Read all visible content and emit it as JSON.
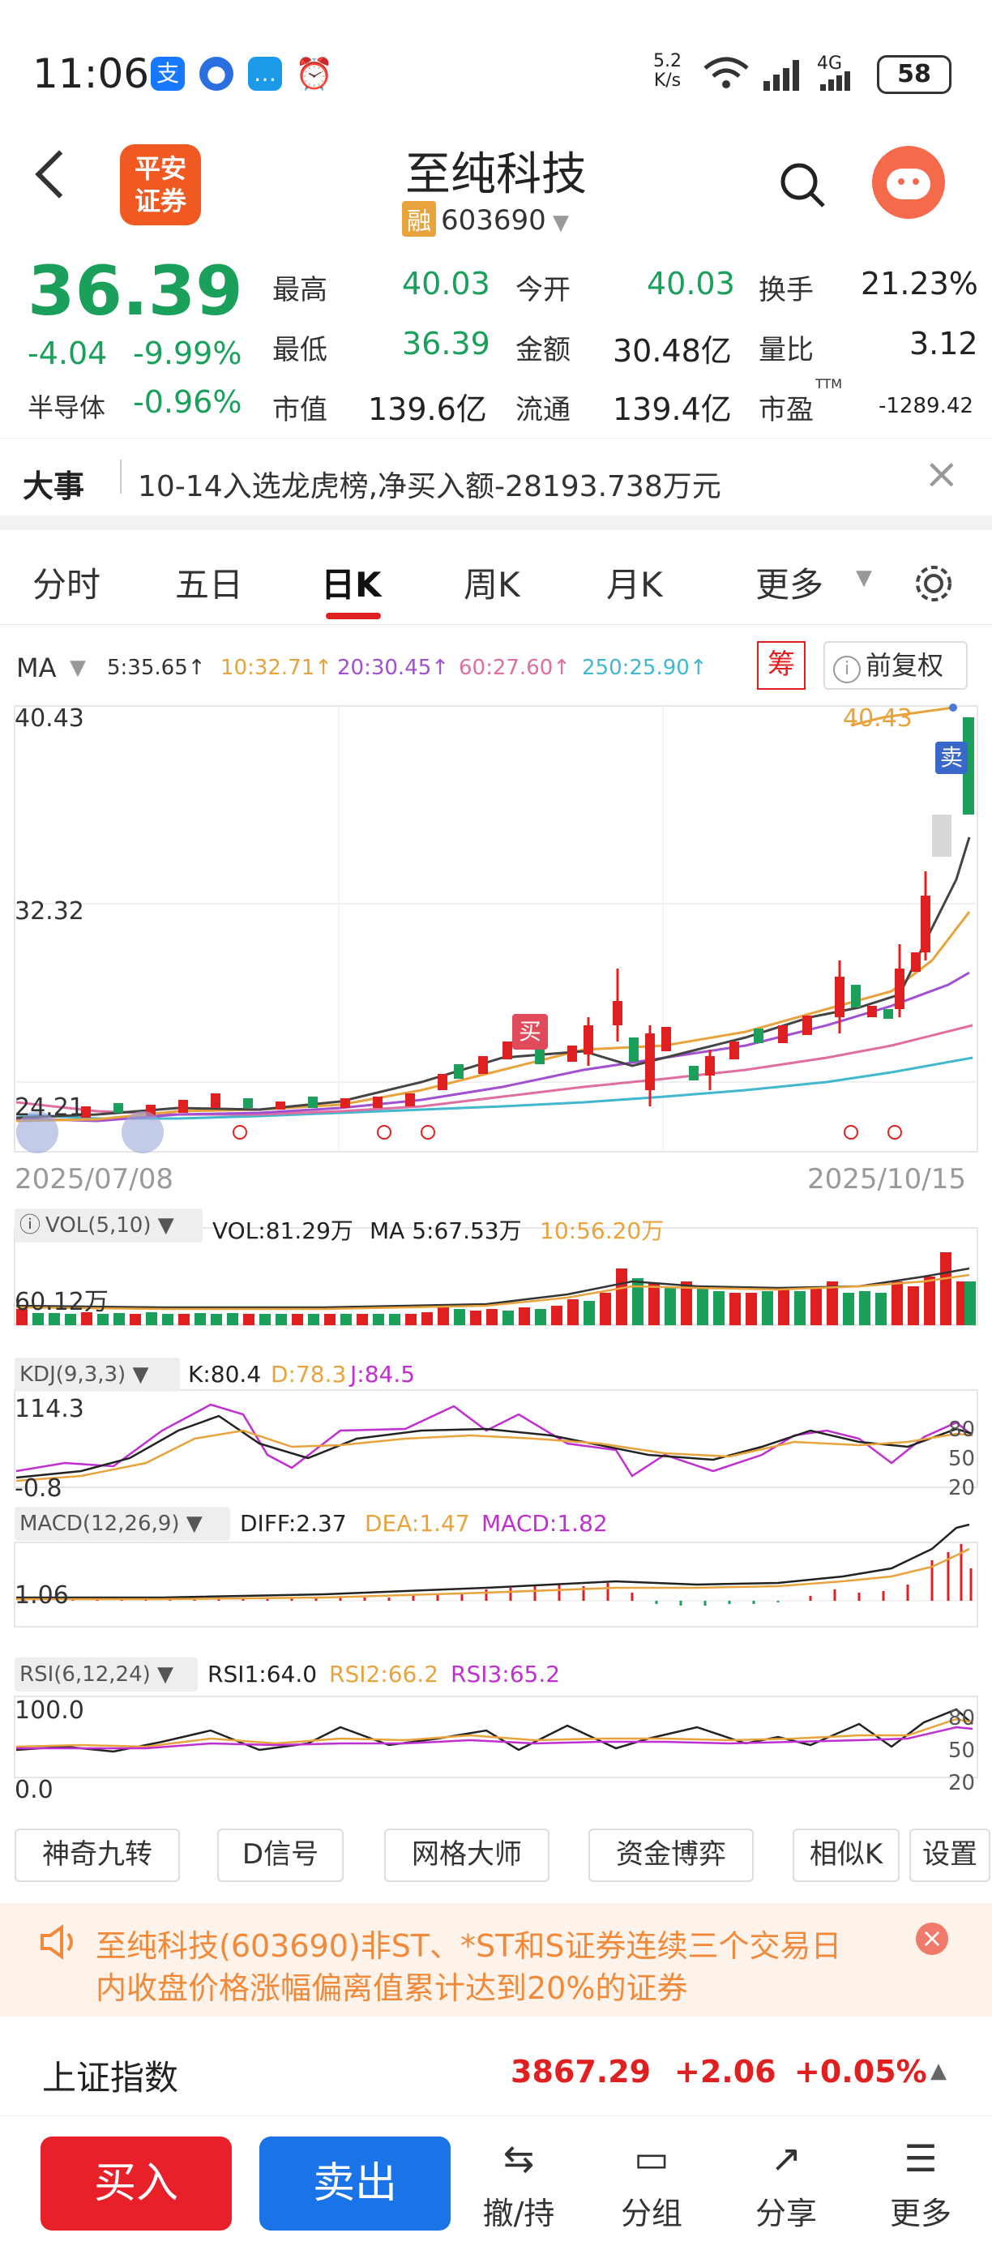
{
  "status": {
    "time": "11:06",
    "speed_top": "5.2",
    "speed_bottom": "K/s",
    "network": "4G",
    "battery": "58",
    "icons": [
      "alipay-icon",
      "app-icon",
      "message-icon",
      "alarm-icon"
    ]
  },
  "header": {
    "logo_line1": "平安",
    "logo_line2": "证券",
    "title": "至纯科技",
    "rong_badge": "融",
    "code": "603690"
  },
  "quote": {
    "price": "36.39",
    "change": "-4.04",
    "change_pct": "-9.99%",
    "sector_label": "半导体",
    "sector_pct": "-0.96%",
    "high_label": "最高",
    "high": "40.03",
    "open_label": "今开",
    "open": "40.03",
    "turnover_label": "换手",
    "turnover": "21.23%",
    "low_label": "最低",
    "low": "36.39",
    "amount_label": "金额",
    "amount": "30.48亿",
    "vol_ratio_label": "量比",
    "vol_ratio": "3.12",
    "mcap_label": "市值",
    "mcap": "139.6亿",
    "float_label": "流通",
    "float": "139.4亿",
    "pe_label": "市盈",
    "pe_sup": "TTM",
    "pe": "-1289.42"
  },
  "news": {
    "label": "大事",
    "text": "10-14入选龙虎榜,净买入额-28193.738万元"
  },
  "tabs": [
    {
      "label": "分时"
    },
    {
      "label": "五日"
    },
    {
      "label": "日K"
    },
    {
      "label": "周K"
    },
    {
      "label": "月K"
    },
    {
      "label": "更多"
    }
  ],
  "chart": {
    "ma_label": "MA",
    "ma_items": [
      {
        "text": "5:35.65↑",
        "color": "#333333"
      },
      {
        "text": "10:32.71↑",
        "color": "#e8a33c"
      },
      {
        "text": "20:30.45↑",
        "color": "#a050d0"
      },
      {
        "text": "60:27.60↑",
        "color": "#e06ea0"
      },
      {
        "text": "250:25.90↑",
        "color": "#40b8d0"
      }
    ],
    "chou_label": "筹",
    "fuquan_label": "前复权",
    "y_top": "40.43",
    "y_mid": "32.32",
    "y_low": "24.21",
    "high_mark": "40.43",
    "buy_mark": "买",
    "sell_mark": "卖",
    "date_start": "2025/07/08",
    "date_end": "2025/10/15",
    "vol_label": "VOL(5,10)",
    "vol_text": "VOL:81.29万",
    "vol_ma5": "MA 5:67.53万",
    "vol_ma10": "10:56.20万",
    "vol_axis": "60.12万",
    "kdj_label": "KDJ(9,3,3)",
    "kdj_k": "K:80.4",
    "kdj_d": "D:78.3",
    "kdj_j": "J:84.5",
    "kdj_top": "114.3",
    "kdj_bottom": "-0.8",
    "kdj_r80": "80",
    "kdj_r50": "50",
    "kdj_r20": "20",
    "macd_label": "MACD(12,26,9)",
    "macd_diff": "DIFF:2.37",
    "macd_dea": "DEA:1.47",
    "macd_val": "MACD:1.82",
    "macd_axis": "1.06",
    "rsi_label": "RSI(6,12,24)",
    "rsi1": "RSI1:64.0",
    "rsi2": "RSI2:66.2",
    "rsi3": "RSI3:65.2",
    "rsi_top": "100.0",
    "rsi_bottom": "0.0",
    "rsi_r80": "80",
    "rsi_r50": "50",
    "rsi_r20": "20"
  },
  "tools": [
    {
      "label": "神奇九转"
    },
    {
      "label": "D信号"
    },
    {
      "label": "网格大师"
    },
    {
      "label": "资金博弈"
    },
    {
      "label": "相似K"
    },
    {
      "label": "设置"
    }
  ],
  "notice": {
    "line1": "至纯科技(603690)非ST、*ST和S证券连续三个交易日",
    "line2": "内收盘价格涨幅偏离值累计达到20%的证券"
  },
  "index": {
    "name": "上证指数",
    "value": "3867.29",
    "change": "+2.06",
    "pct": "+0.05%"
  },
  "bottom": {
    "buy": "买入",
    "sell": "卖出",
    "nav": [
      {
        "label": "撤/持"
      },
      {
        "label": "分组"
      },
      {
        "label": "分享"
      },
      {
        "label": "更多"
      }
    ]
  }
}
